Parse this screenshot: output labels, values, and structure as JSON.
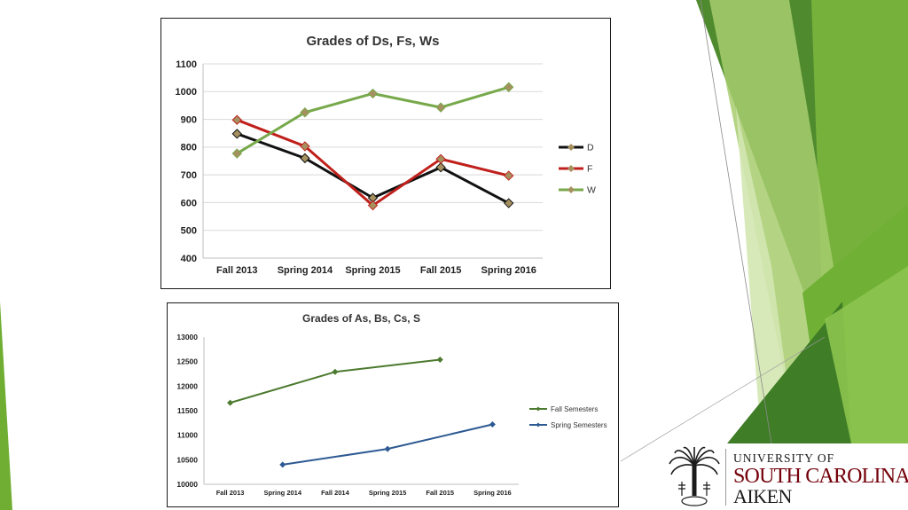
{
  "colors": {
    "accent_green_dark": "#4e8a2e",
    "accent_green": "#78b23c",
    "accent_green_light": "#c2dc94",
    "garnet": "#73000a"
  },
  "chart_data": [
    {
      "type": "line",
      "title": "Grades of Ds, Fs, Ws",
      "categories": [
        "Fall 2013",
        "Spring 2014",
        "Spring 2015",
        "Fall 2015",
        "Spring 2016"
      ],
      "series": [
        {
          "name": "D",
          "color": "#111111",
          "values": [
            848,
            760,
            617,
            727,
            598
          ]
        },
        {
          "name": "F",
          "color": "#c0201b",
          "values": [
            898,
            803,
            590,
            757,
            697
          ]
        },
        {
          "name": "W",
          "color": "#77a94b",
          "values": [
            777,
            925,
            993,
            943,
            1016
          ]
        }
      ],
      "ylim": [
        400,
        1100
      ],
      "yticks": [
        400,
        500,
        600,
        700,
        800,
        900,
        1000,
        1100
      ],
      "grid": true,
      "legend": "right"
    },
    {
      "type": "line",
      "title": "Grades of As, Bs, Cs, S",
      "categories": [
        "Fall 2013",
        "Spring 2014",
        "Fall 2014",
        "Spring 2015",
        "Fall 2015",
        "Spring 2016"
      ],
      "series": [
        {
          "name": "Fall Semesters",
          "color": "#4c7a2e",
          "values": [
            11660,
            null,
            12290,
            null,
            12540,
            null
          ]
        },
        {
          "name": "Spring Semesters",
          "color": "#2d5a92",
          "values": [
            null,
            10400,
            null,
            10720,
            null,
            11220
          ]
        }
      ],
      "ylim": [
        10000,
        13000
      ],
      "yticks": [
        10000,
        10500,
        11000,
        11500,
        12000,
        12500,
        13000
      ],
      "grid": false,
      "legend": "right"
    }
  ],
  "logo": {
    "line1": "UNIVERSITY OF",
    "line2": "SOUTH CAROLINA",
    "line3": "AIKEN",
    "seal_icon": "palmetto-seal-icon"
  }
}
